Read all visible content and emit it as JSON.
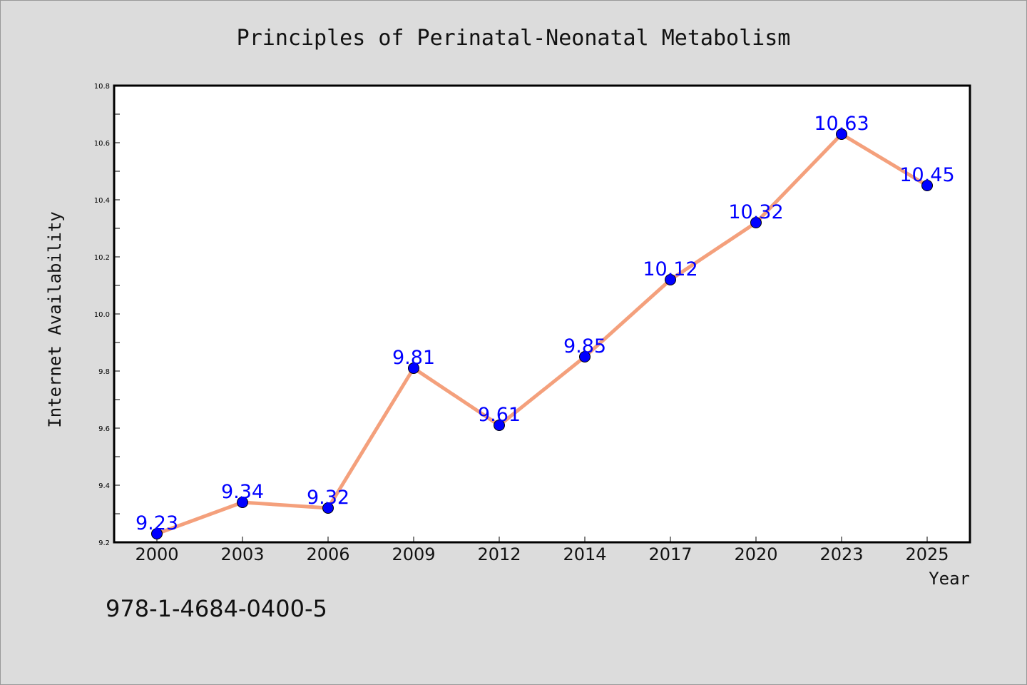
{
  "chart_data": {
    "type": "line",
    "title": "Principles of Perinatal-Neonatal Metabolism",
    "xlabel": "Year",
    "ylabel": "Internet Availability",
    "categories": [
      "2000",
      "2003",
      "2006",
      "2009",
      "2012",
      "2014",
      "2017",
      "2020",
      "2023",
      "2025"
    ],
    "values": [
      9.23,
      9.34,
      9.32,
      9.81,
      9.61,
      9.85,
      10.12,
      10.32,
      10.63,
      10.45
    ],
    "data_labels": [
      "9.23",
      "9.34",
      "9.32",
      "9.81",
      "9.61",
      "9.85",
      "10.12",
      "10.32",
      "10.63",
      "10.45"
    ],
    "ylim": [
      9.2,
      10.8
    ],
    "yticks": [
      "9.2",
      "9.4",
      "9.6",
      "9.8",
      "10.0",
      "10.2",
      "10.4",
      "10.6",
      "10.8"
    ],
    "grid": false,
    "legend": "none",
    "colors": {
      "line": "#f4a07c",
      "marker": "#0000ff",
      "data_label": "#0000ff",
      "background": "#dcdcdc",
      "plot_background": "#ffffff"
    }
  },
  "footnote": "978-1-4684-0400-5"
}
